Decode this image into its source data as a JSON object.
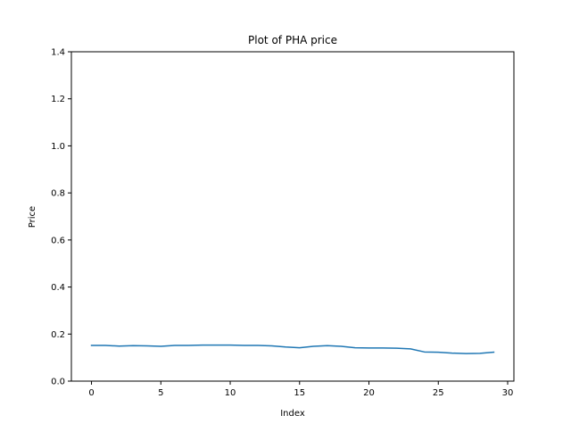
{
  "chart_data": {
    "type": "line",
    "title": "Plot of PHA price",
    "xlabel": "Index",
    "ylabel": "Price",
    "xlim": [
      -1.45,
      30.45
    ],
    "ylim": [
      0.0,
      1.4
    ],
    "xticks": [
      0,
      5,
      10,
      15,
      20,
      25,
      30
    ],
    "yticks": [
      0.0,
      0.2,
      0.4,
      0.6,
      0.8,
      1.0,
      1.2,
      1.4
    ],
    "xtick_labels": [
      "0",
      "5",
      "10",
      "15",
      "20",
      "25",
      "30"
    ],
    "ytick_labels": [
      "0.0",
      "0.2",
      "0.4",
      "0.6",
      "0.8",
      "1.0",
      "1.2",
      "1.4"
    ],
    "grid": false,
    "series": [
      {
        "color": "#1f77b4",
        "x": [
          0,
          1,
          2,
          3,
          4,
          5,
          6,
          7,
          8,
          9,
          10,
          11,
          12,
          13,
          14,
          15,
          16,
          17,
          18,
          19,
          20,
          21,
          22,
          23,
          24,
          25,
          26,
          27,
          28,
          29
        ],
        "y": [
          0.152,
          0.152,
          0.149,
          0.151,
          0.15,
          0.148,
          0.152,
          0.152,
          0.153,
          0.153,
          0.153,
          0.152,
          0.152,
          0.15,
          0.145,
          0.142,
          0.148,
          0.151,
          0.148,
          0.142,
          0.141,
          0.141,
          0.14,
          0.137,
          0.124,
          0.123,
          0.119,
          0.117,
          0.118,
          0.123
        ]
      }
    ]
  }
}
